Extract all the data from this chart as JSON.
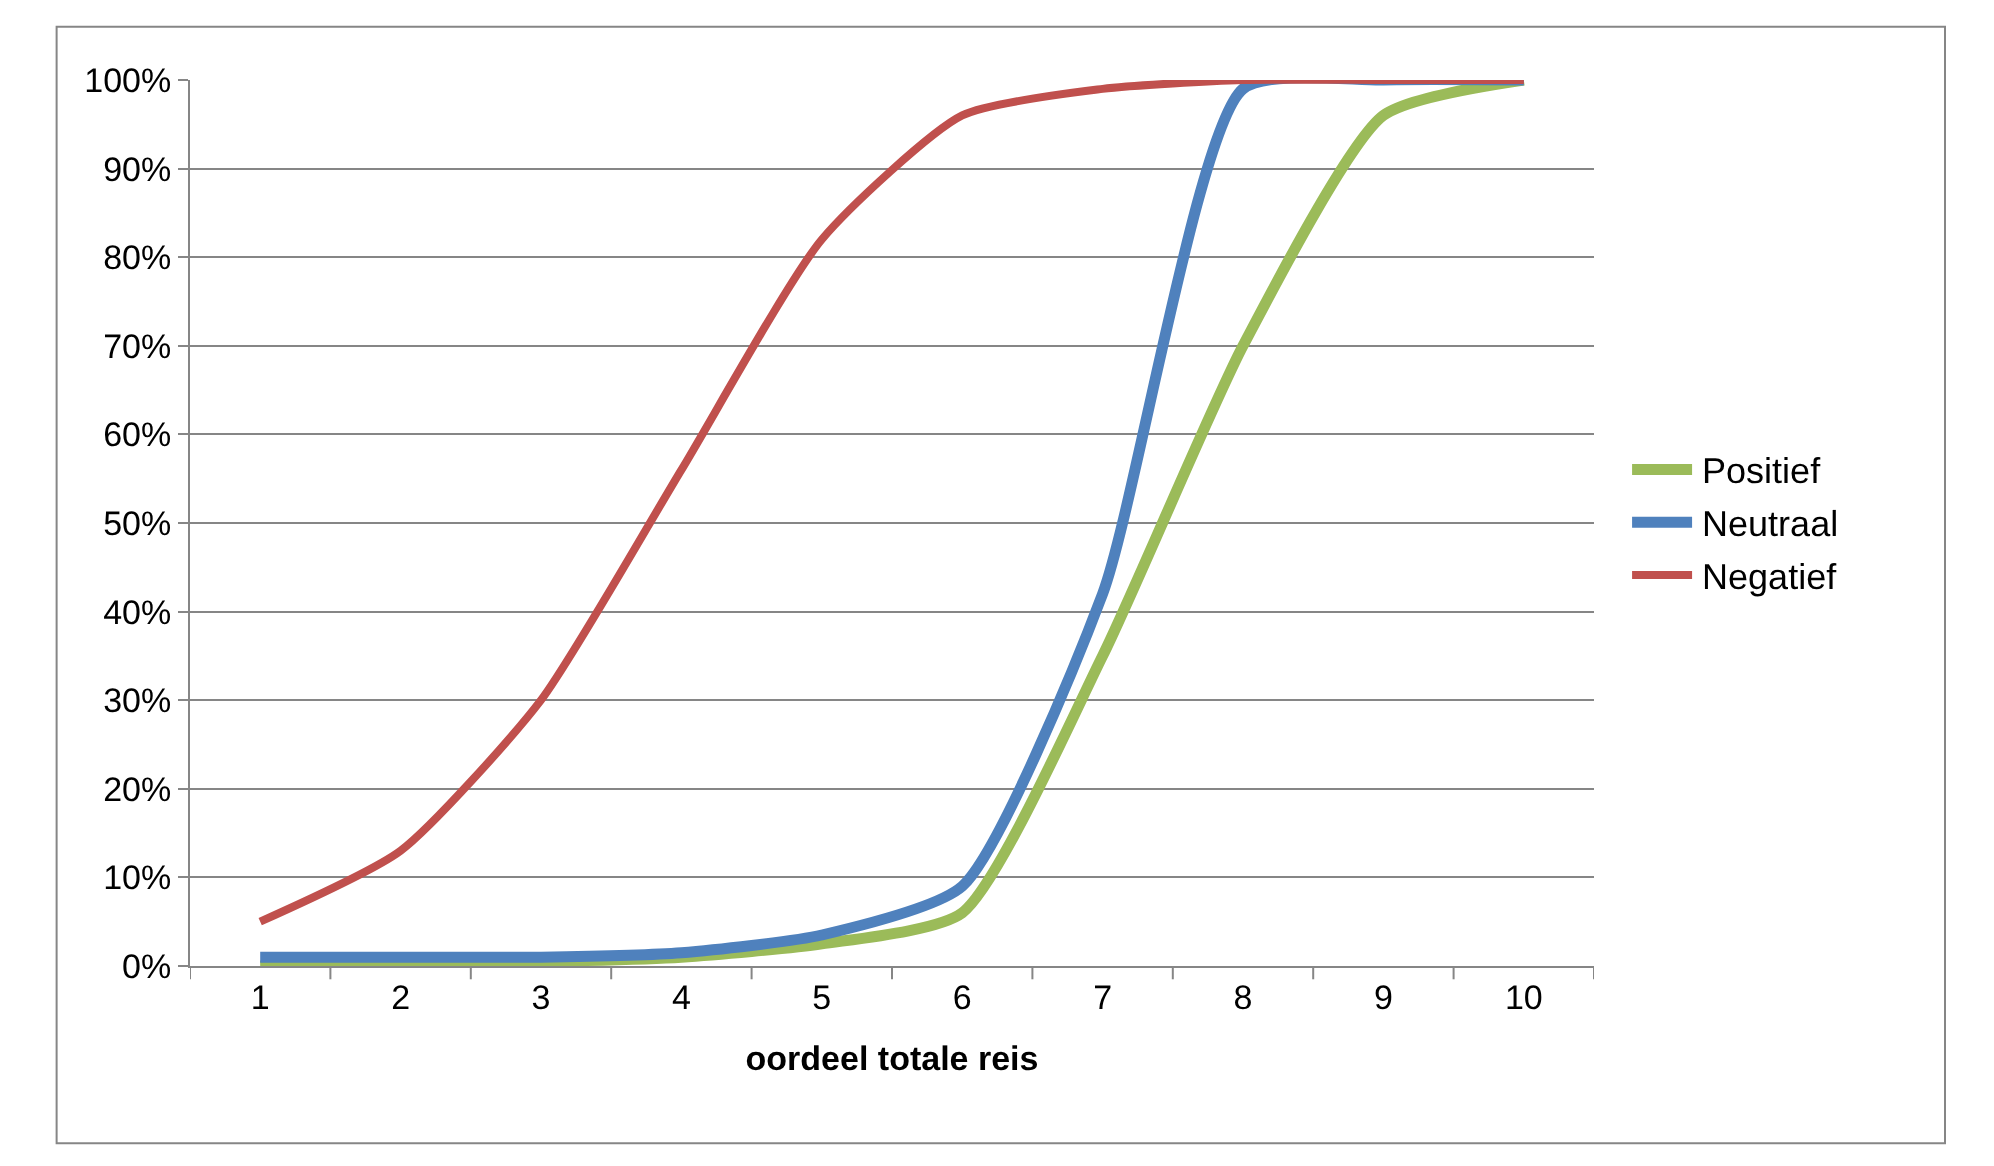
{
  "chart_data": {
    "type": "line",
    "xlabel": "oordeel totale reis",
    "categories": [
      "1",
      "2",
      "3",
      "4",
      "5",
      "6",
      "7",
      "8",
      "9",
      "10"
    ],
    "series": [
      {
        "name": "Positief",
        "color": "#9bbb59",
        "values": [
          0,
          0.3,
          0.5,
          1,
          2.5,
          6,
          35,
          70,
          96,
          100
        ]
      },
      {
        "name": "Neutraal",
        "color": "#4f81bd",
        "values": [
          1,
          1,
          1,
          1.5,
          3.5,
          9,
          42,
          99,
          100,
          100
        ]
      },
      {
        "name": "Negatief",
        "color": "#c0504d",
        "values": [
          5,
          13,
          30,
          56,
          82,
          96,
          99,
          100,
          100,
          100
        ]
      }
    ],
    "ylim": [
      0,
      100
    ],
    "yticks": [
      {
        "value": 0,
        "label": "0%"
      },
      {
        "value": 10,
        "label": "10%"
      },
      {
        "value": 20,
        "label": "20%"
      },
      {
        "value": 30,
        "label": "30%"
      },
      {
        "value": 40,
        "label": "40%"
      },
      {
        "value": 50,
        "label": "50%"
      },
      {
        "value": 60,
        "label": "60%"
      },
      {
        "value": 70,
        "label": "70%"
      },
      {
        "value": 80,
        "label": "80%"
      },
      {
        "value": 90,
        "label": "90%"
      },
      {
        "value": 100,
        "label": "100%"
      }
    ],
    "grid": "y",
    "legend": "right",
    "marker": "none",
    "line_style": "solid"
  }
}
